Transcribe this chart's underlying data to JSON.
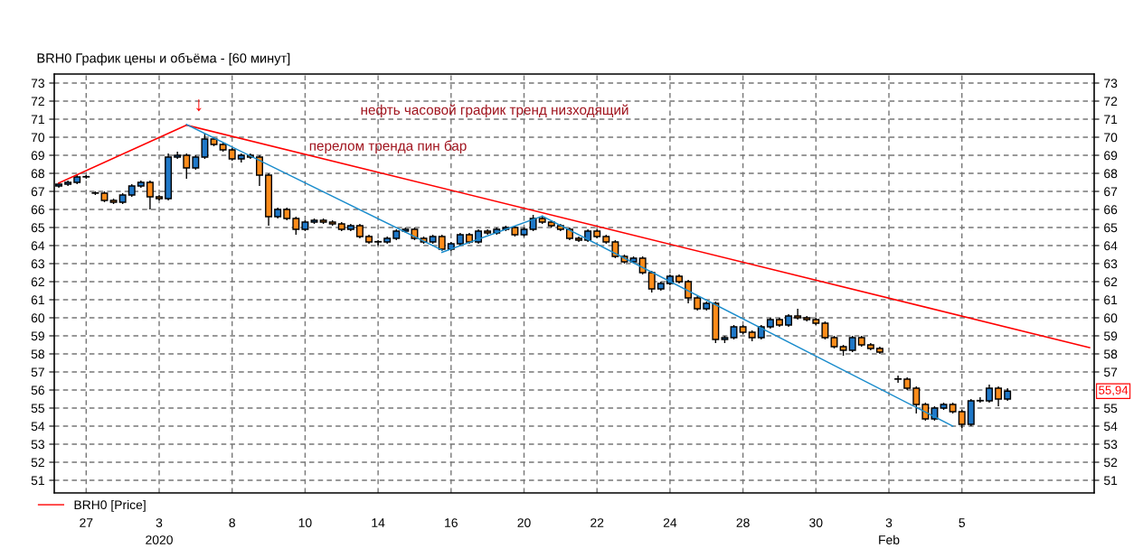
{
  "chart_data": {
    "type": "candlestick",
    "title": "BRH0 График цены и объёма - [60 минут]",
    "categories": [
      null,
      null,
      null,
      "27",
      null,
      null,
      null,
      null,
      null,
      null,
      null,
      "3\n2020",
      null,
      null,
      null,
      null,
      null,
      null,
      null,
      "8",
      null,
      null,
      null,
      null,
      null,
      null,
      null,
      "10",
      null,
      null,
      null,
      null,
      null,
      null,
      null,
      "14",
      null,
      null,
      null,
      null,
      null,
      null,
      null,
      "16",
      null,
      null,
      null,
      null,
      null,
      null,
      null,
      "20",
      null,
      null,
      null,
      null,
      null,
      null,
      null,
      "22",
      null,
      null,
      null,
      null,
      null,
      null,
      null,
      "24",
      null,
      null,
      null,
      null,
      null,
      null,
      null,
      "28",
      null,
      null,
      null,
      null,
      null,
      null,
      null,
      "30",
      null,
      null,
      null,
      null,
      null,
      null,
      null,
      "3\nFeb",
      null,
      null,
      null,
      null,
      null,
      null,
      null,
      "5",
      null,
      null,
      null,
      null,
      null,
      null,
      null,
      null,
      null,
      null,
      null,
      null,
      null,
      null
    ],
    "ylim": [
      50.3,
      73.5
    ],
    "y2lim": [
      50.3,
      73.5
    ],
    "yticks": [
      51,
      52,
      53,
      54,
      55,
      56,
      57,
      58,
      59,
      60,
      61,
      62,
      63,
      64,
      65,
      66,
      67,
      68,
      69,
      70,
      71,
      72,
      73
    ],
    "y2ticks": [
      51,
      52,
      53,
      54,
      55,
      57,
      58,
      59,
      60,
      61,
      62,
      63,
      64,
      65,
      66,
      67,
      68,
      69,
      70,
      71,
      72,
      73
    ],
    "grid": true,
    "legend": "bottom left",
    "series": [
      {
        "name": "BRH0 [Price]",
        "color": "#ff0000",
        "ohlc": [
          [
            67.3,
            67.5,
            67.2,
            67.4
          ],
          [
            67.4,
            67.6,
            67.3,
            67.5
          ],
          [
            67.5,
            67.9,
            67.4,
            67.8
          ],
          [
            67.8,
            67.9,
            67.7,
            67.8
          ],
          [
            66.9,
            67.0,
            66.8,
            66.9
          ],
          [
            66.9,
            67.0,
            66.4,
            66.5
          ],
          [
            66.5,
            66.6,
            66.3,
            66.4
          ],
          [
            66.4,
            66.9,
            66.3,
            66.8
          ],
          [
            66.8,
            67.4,
            66.7,
            67.3
          ],
          [
            67.3,
            67.6,
            67.2,
            67.5
          ],
          [
            67.5,
            67.6,
            66.0,
            66.7
          ],
          [
            66.7,
            66.8,
            66.5,
            66.6
          ],
          [
            66.6,
            69.1,
            66.5,
            68.9
          ],
          [
            68.9,
            69.2,
            68.8,
            69.0
          ],
          [
            69.0,
            69.1,
            67.7,
            68.3
          ],
          [
            68.3,
            69.0,
            68.2,
            68.9
          ],
          [
            68.9,
            70.2,
            68.8,
            69.9
          ],
          [
            69.9,
            70.0,
            69.5,
            69.6
          ],
          [
            69.6,
            69.7,
            69.2,
            69.3
          ],
          [
            69.3,
            69.4,
            68.7,
            68.8
          ],
          [
            68.8,
            69.1,
            68.6,
            69.0
          ],
          [
            69.0,
            69.1,
            68.8,
            68.9
          ],
          [
            68.9,
            69.0,
            67.3,
            67.9
          ],
          [
            67.9,
            68.0,
            65.1,
            65.6
          ],
          [
            65.6,
            66.1,
            65.5,
            66.0
          ],
          [
            66.0,
            66.1,
            65.4,
            65.5
          ],
          [
            65.5,
            65.6,
            64.6,
            64.9
          ],
          [
            64.9,
            65.4,
            64.8,
            65.3
          ],
          [
            65.3,
            65.5,
            65.2,
            65.4
          ],
          [
            65.4,
            65.5,
            65.2,
            65.3
          ],
          [
            65.3,
            65.4,
            65.1,
            65.2
          ],
          [
            65.2,
            65.3,
            64.8,
            64.9
          ],
          [
            64.9,
            65.2,
            64.8,
            65.1
          ],
          [
            65.1,
            65.2,
            64.4,
            64.5
          ],
          [
            64.5,
            64.6,
            64.1,
            64.2
          ],
          [
            64.2,
            64.3,
            64.0,
            64.2
          ],
          [
            64.2,
            64.5,
            64.1,
            64.4
          ],
          [
            64.4,
            64.9,
            64.3,
            64.8
          ],
          [
            64.8,
            65.0,
            64.7,
            64.9
          ],
          [
            64.9,
            65.0,
            64.3,
            64.4
          ],
          [
            64.4,
            64.5,
            64.1,
            64.2
          ],
          [
            64.2,
            64.6,
            64.1,
            64.5
          ],
          [
            64.5,
            64.6,
            63.7,
            63.8
          ],
          [
            63.8,
            64.2,
            63.7,
            64.1
          ],
          [
            64.1,
            64.7,
            64.0,
            64.6
          ],
          [
            64.6,
            64.7,
            64.1,
            64.2
          ],
          [
            64.2,
            64.9,
            64.1,
            64.8
          ],
          [
            64.8,
            64.9,
            64.6,
            64.7
          ],
          [
            64.7,
            65.0,
            64.6,
            64.9
          ],
          [
            64.9,
            65.1,
            64.8,
            65.0
          ],
          [
            65.0,
            65.1,
            64.5,
            64.6
          ],
          [
            64.6,
            65.0,
            64.5,
            64.9
          ],
          [
            64.9,
            65.7,
            64.8,
            65.5
          ],
          [
            65.5,
            65.6,
            65.2,
            65.3
          ],
          [
            65.3,
            65.4,
            65.0,
            65.1
          ],
          [
            65.1,
            65.2,
            64.8,
            64.9
          ],
          [
            64.9,
            65.0,
            64.3,
            64.4
          ],
          [
            64.4,
            64.5,
            64.2,
            64.3
          ],
          [
            64.3,
            64.9,
            64.2,
            64.8
          ],
          [
            64.8,
            64.9,
            64.4,
            64.5
          ],
          [
            64.5,
            64.6,
            64.1,
            64.2
          ],
          [
            64.2,
            64.3,
            63.3,
            63.4
          ],
          [
            63.4,
            63.5,
            63.0,
            63.1
          ],
          [
            63.1,
            63.4,
            63.0,
            63.3
          ],
          [
            63.3,
            63.4,
            62.4,
            62.5
          ],
          [
            62.5,
            62.6,
            61.4,
            61.6
          ],
          [
            61.6,
            62.0,
            61.5,
            61.9
          ],
          [
            61.9,
            62.4,
            61.8,
            62.3
          ],
          [
            62.3,
            62.4,
            61.9,
            62.0
          ],
          [
            62.0,
            62.1,
            60.8,
            61.1
          ],
          [
            61.1,
            61.2,
            60.4,
            60.5
          ],
          [
            60.5,
            60.9,
            60.4,
            60.8
          ],
          [
            60.8,
            60.9,
            58.6,
            58.8
          ],
          [
            58.8,
            59.0,
            58.6,
            58.9
          ],
          [
            58.9,
            59.6,
            58.8,
            59.5
          ],
          [
            59.5,
            59.6,
            59.1,
            59.2
          ],
          [
            59.2,
            59.3,
            58.7,
            58.9
          ],
          [
            58.9,
            59.6,
            58.8,
            59.5
          ],
          [
            59.5,
            60.0,
            59.4,
            59.9
          ],
          [
            59.9,
            60.0,
            59.5,
            59.6
          ],
          [
            59.6,
            60.2,
            59.5,
            60.1
          ],
          [
            60.1,
            60.5,
            59.9,
            60.0
          ],
          [
            60.0,
            60.1,
            59.8,
            59.9
          ],
          [
            59.9,
            60.0,
            59.6,
            59.7
          ],
          [
            59.7,
            59.8,
            58.8,
            58.9
          ],
          [
            58.9,
            59.0,
            58.3,
            58.4
          ],
          [
            58.4,
            58.5,
            57.9,
            58.2
          ],
          [
            58.2,
            59.0,
            58.1,
            58.9
          ],
          [
            58.9,
            59.0,
            58.4,
            58.5
          ],
          [
            58.5,
            58.6,
            58.2,
            58.3
          ],
          [
            58.3,
            58.4,
            58.0,
            58.1
          ],
          null,
          [
            56.6,
            56.8,
            56.4,
            56.6
          ],
          [
            56.6,
            56.7,
            56.0,
            56.1
          ],
          [
            56.1,
            56.2,
            54.7,
            55.2
          ],
          [
            55.2,
            55.3,
            54.3,
            54.4
          ],
          [
            54.4,
            55.1,
            54.3,
            55.0
          ],
          [
            55.0,
            55.3,
            54.9,
            55.2
          ],
          [
            55.2,
            55.3,
            54.7,
            54.8
          ],
          [
            54.8,
            54.9,
            53.9,
            54.1
          ],
          [
            54.1,
            55.5,
            54.0,
            55.4
          ],
          [
            55.4,
            55.6,
            55.3,
            55.4
          ],
          [
            55.4,
            56.3,
            55.3,
            56.1
          ],
          [
            56.1,
            56.2,
            55.1,
            55.5
          ],
          [
            55.5,
            56.1,
            55.4,
            55.94
          ],
          null,
          null,
          null,
          null,
          null,
          null,
          null,
          null,
          null
        ],
        "colors": [
          "#1f78c8",
          "#1f78c8",
          "#1f78c8",
          "#1f78c8",
          "#1f78c8",
          "#ff8c1a",
          "#ff8c1a",
          "#1f78c8",
          "#1f78c8",
          "#1f78c8",
          "#ff8c1a",
          "#ff8c1a",
          "#1f78c8",
          "#1f78c8",
          "#ff8c1a",
          "#1f78c8",
          "#1f78c8",
          "#ff8c1a",
          "#ff8c1a",
          "#ff8c1a",
          "#1f78c8",
          "#ff8c1a",
          "#ff8c1a",
          "#ff8c1a",
          "#1f78c8",
          "#ff8c1a",
          "#ff8c1a",
          "#1f78c8",
          "#1f78c8",
          "#ff8c1a",
          "#ff8c1a",
          "#ff8c1a",
          "#1f78c8",
          "#ff8c1a",
          "#ff8c1a",
          "#1f78c8",
          "#1f78c8",
          "#1f78c8",
          "#1f78c8",
          "#ff8c1a",
          "#ff8c1a",
          "#1f78c8",
          "#ff8c1a",
          "#1f78c8",
          "#1f78c8",
          "#ff8c1a",
          "#1f78c8",
          "#ff8c1a",
          "#1f78c8",
          "#1f78c8",
          "#ff8c1a",
          "#1f78c8",
          "#1f78c8",
          "#ff8c1a",
          "#ff8c1a",
          "#ff8c1a",
          "#ff8c1a",
          "#ff8c1a",
          "#1f78c8",
          "#ff8c1a",
          "#ff8c1a",
          "#ff8c1a",
          "#ff8c1a",
          "#1f78c8",
          "#ff8c1a",
          "#ff8c1a",
          "#1f78c8",
          "#1f78c8",
          "#ff8c1a",
          "#ff8c1a",
          "#ff8c1a",
          "#1f78c8",
          "#ff8c1a",
          "#1f78c8",
          "#1f78c8",
          "#ff8c1a",
          "#ff8c1a",
          "#1f78c8",
          "#1f78c8",
          "#ff8c1a",
          "#1f78c8",
          "#ff8c1a",
          "#ff8c1a",
          "#ff8c1a",
          "#ff8c1a",
          "#ff8c1a",
          "#ff8c1a",
          "#1f78c8",
          "#ff8c1a",
          "#ff8c1a",
          "#ff8c1a",
          null,
          "#1f78c8",
          "#ff8c1a",
          "#ff8c1a",
          "#ff8c1a",
          "#1f78c8",
          "#1f78c8",
          "#ff8c1a",
          "#ff8c1a",
          "#1f78c8",
          "#1f78c8",
          "#1f78c8",
          "#ff8c1a",
          "#1f78c8",
          null,
          null,
          null,
          null,
          null,
          null,
          null,
          null,
          null
        ]
      },
      {
        "type": "line",
        "color": "#ff0000",
        "values": [
          67.46,
          null,
          null,
          null,
          null,
          null,
          null,
          null,
          null,
          null,
          null,
          null,
          null,
          null,
          70.67,
          null,
          null,
          null,
          null,
          null,
          null,
          null,
          null,
          null,
          null,
          null,
          null,
          null,
          null,
          null,
          null,
          null,
          null,
          null,
          null,
          null,
          null,
          null,
          null,
          null,
          null,
          null,
          null,
          null,
          null,
          null,
          null,
          null,
          null,
          null,
          null,
          null,
          null,
          null,
          null,
          null,
          null,
          null,
          null,
          null,
          null,
          null,
          null,
          null,
          null,
          null,
          null,
          null,
          null,
          null,
          null,
          null,
          null,
          null,
          null,
          null,
          null,
          null,
          null,
          null,
          null,
          null,
          null,
          null,
          null,
          null,
          null,
          null,
          null,
          null,
          null,
          null,
          null,
          null,
          null,
          null,
          null,
          null,
          null,
          null,
          null,
          null,
          null,
          null,
          null,
          null,
          null,
          null,
          null,
          null,
          null,
          null,
          null,
          null
        ]
      },
      {
        "type": "line",
        "color": "#ff0000",
        "values": [
          null,
          null,
          null,
          null,
          null,
          null,
          null,
          null,
          null,
          null,
          null,
          null,
          null,
          null,
          70.67,
          null,
          null,
          null,
          null,
          null,
          null,
          null,
          null,
          null,
          null,
          null,
          null,
          null,
          null,
          null,
          null,
          null,
          null,
          null,
          null,
          null,
          null,
          null,
          null,
          null,
          null,
          null,
          null,
          null,
          null,
          null,
          null,
          null,
          null,
          null,
          null,
          null,
          null,
          null,
          null,
          null,
          null,
          null,
          null,
          null,
          null,
          null,
          null,
          null,
          null,
          null,
          null,
          null,
          null,
          null,
          null,
          null,
          null,
          null,
          null,
          null,
          null,
          null,
          null,
          null,
          null,
          null,
          null,
          null,
          null,
          null,
          null,
          null,
          null,
          null,
          null,
          null,
          null,
          null,
          null,
          null,
          null,
          null,
          null,
          null,
          null,
          null,
          null,
          null,
          null,
          null,
          null,
          null,
          null,
          null,
          null,
          null,
          null,
          58.35
        ]
      },
      {
        "type": "line",
        "color": "#1a8ccc",
        "values": [
          null,
          null,
          null,
          null,
          null,
          null,
          null,
          null,
          null,
          null,
          null,
          null,
          null,
          null,
          70.7,
          null,
          null,
          null,
          null,
          null,
          null,
          null,
          null,
          null,
          null,
          null,
          null,
          null,
          null,
          null,
          null,
          null,
          null,
          null,
          null,
          null,
          null,
          null,
          null,
          null,
          null,
          null,
          63.75,
          null,
          null,
          null,
          null,
          null,
          null,
          null,
          null,
          null,
          null,
          null,
          null,
          null,
          null,
          null,
          null,
          null,
          null,
          null,
          null,
          null,
          null,
          null,
          null,
          null,
          null,
          null,
          null,
          null,
          null,
          null,
          null,
          null,
          null,
          null,
          null,
          null,
          null,
          null,
          null,
          null,
          null,
          null,
          null,
          null,
          null,
          null,
          null,
          null,
          null,
          null,
          null,
          null,
          null,
          null,
          null,
          null,
          null,
          null,
          null,
          null,
          null,
          null,
          null,
          null,
          null,
          null,
          null,
          null,
          null,
          null
        ]
      },
      {
        "type": "line",
        "color": "#1a8ccc",
        "values": [
          null,
          null,
          null,
          null,
          null,
          null,
          null,
          null,
          null,
          null,
          null,
          null,
          null,
          null,
          null,
          null,
          null,
          null,
          null,
          null,
          null,
          null,
          null,
          null,
          null,
          null,
          null,
          null,
          null,
          null,
          null,
          null,
          null,
          null,
          null,
          null,
          null,
          null,
          null,
          null,
          null,
          null,
          63.63,
          null,
          null,
          null,
          null,
          null,
          null,
          null,
          null,
          null,
          null,
          65.63,
          null,
          null,
          null,
          null,
          null,
          null,
          null,
          null,
          null,
          null,
          null,
          null,
          null,
          null,
          null,
          null,
          null,
          null,
          null,
          null,
          null,
          null,
          null,
          null,
          null,
          null,
          null,
          null,
          null,
          null,
          null,
          null,
          null,
          null,
          null,
          null,
          null,
          null,
          null,
          null,
          null,
          null,
          null,
          null,
          null,
          null,
          null,
          null,
          null,
          null,
          null,
          null,
          null,
          null,
          null,
          null,
          null,
          null,
          null,
          null
        ]
      },
      {
        "type": "line",
        "color": "#1a8ccc",
        "values": [
          null,
          null,
          null,
          null,
          null,
          null,
          null,
          null,
          null,
          null,
          null,
          null,
          null,
          null,
          null,
          null,
          null,
          null,
          null,
          null,
          null,
          null,
          null,
          null,
          null,
          null,
          null,
          null,
          null,
          null,
          null,
          null,
          null,
          null,
          null,
          null,
          null,
          null,
          null,
          null,
          null,
          null,
          null,
          null,
          null,
          null,
          null,
          null,
          null,
          null,
          null,
          null,
          null,
          65.63,
          null,
          null,
          null,
          null,
          null,
          null,
          null,
          null,
          null,
          null,
          null,
          null,
          null,
          null,
          null,
          null,
          null,
          null,
          null,
          null,
          null,
          null,
          null,
          null,
          null,
          null,
          null,
          null,
          null,
          null,
          null,
          null,
          null,
          null,
          null,
          null,
          null,
          null,
          null,
          null,
          null,
          null,
          null,
          null,
          54.0,
          null,
          null,
          null,
          null,
          null,
          null,
          null,
          null,
          null,
          null,
          null,
          null,
          null,
          null,
          null
        ]
      }
    ],
    "annotations": [
      "нефть часовой график тренд низходящий",
      "перелом тренда пин бар",
      "↓",
      "55,94"
    ]
  }
}
